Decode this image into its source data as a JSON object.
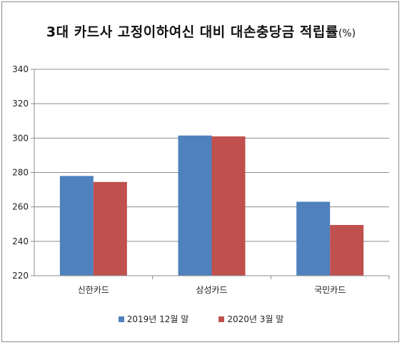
{
  "chart_data": {
    "type": "bar",
    "title": "3대 카드사 고정이하여신 대비 대손충당금 적립률",
    "title_unit": "(%)",
    "categories": [
      "신한카드",
      "삼성카드",
      "국민카드"
    ],
    "series": [
      {
        "name": "2019년 12월 말",
        "values": [
          278,
          301.5,
          263
        ],
        "color": "#4f81bd"
      },
      {
        "name": "2020년 3월 말",
        "values": [
          274.5,
          301,
          249.5
        ],
        "color": "#c0504d"
      }
    ],
    "ylim": [
      220,
      340
    ],
    "yticks": [
      220,
      240,
      260,
      280,
      300,
      320,
      340
    ],
    "grid": true,
    "legend_position": "bottom"
  }
}
